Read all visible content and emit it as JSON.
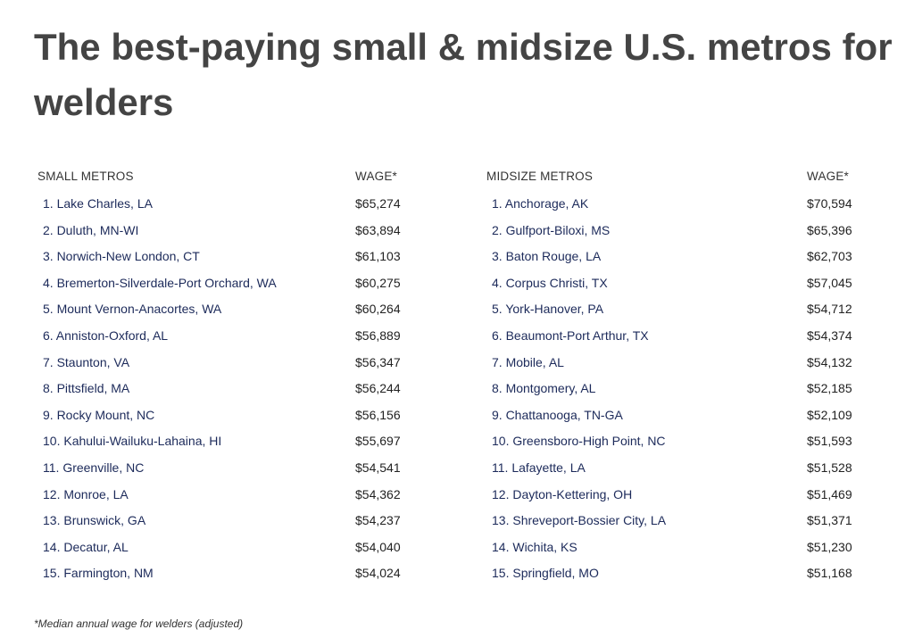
{
  "title": "The best-paying small & midsize U.S. metros for welders",
  "small_metros": {
    "header_name": "SMALL METROS",
    "header_wage": "WAGE*",
    "rows": [
      {
        "name": "1. Lake Charles, LA",
        "wage": "$65,274"
      },
      {
        "name": "2. Duluth, MN-WI",
        "wage": "$63,894"
      },
      {
        "name": "3. Norwich-New London, CT",
        "wage": "$61,103"
      },
      {
        "name": "4. Bremerton-Silverdale-Port Orchard, WA",
        "wage": "$60,275"
      },
      {
        "name": "5. Mount Vernon-Anacortes, WA",
        "wage": "$60,264"
      },
      {
        "name": "6. Anniston-Oxford, AL",
        "wage": "$56,889"
      },
      {
        "name": "7. Staunton, VA",
        "wage": "$56,347"
      },
      {
        "name": "8. Pittsfield, MA",
        "wage": "$56,244"
      },
      {
        "name": "9. Rocky Mount, NC",
        "wage": "$56,156"
      },
      {
        "name": "10. Kahului-Wailuku-Lahaina, HI",
        "wage": "$55,697"
      },
      {
        "name": "11. Greenville, NC",
        "wage": "$54,541"
      },
      {
        "name": "12. Monroe, LA",
        "wage": "$54,362"
      },
      {
        "name": "13. Brunswick, GA",
        "wage": "$54,237"
      },
      {
        "name": "14. Decatur, AL",
        "wage": "$54,040"
      },
      {
        "name": "15. Farmington, NM",
        "wage": "$54,024"
      }
    ]
  },
  "midsize_metros": {
    "header_name": "MIDSIZE METROS",
    "header_wage": "WAGE*",
    "rows": [
      {
        "name": "1. Anchorage, AK",
        "wage": "$70,594"
      },
      {
        "name": "2. Gulfport-Biloxi, MS",
        "wage": "$65,396"
      },
      {
        "name": "3. Baton Rouge, LA",
        "wage": "$62,703"
      },
      {
        "name": "4. Corpus Christi, TX",
        "wage": "$57,045"
      },
      {
        "name": "5. York-Hanover, PA",
        "wage": "$54,712"
      },
      {
        "name": "6. Beaumont-Port Arthur, TX",
        "wage": "$54,374"
      },
      {
        "name": "7. Mobile, AL",
        "wage": "$54,132"
      },
      {
        "name": "8. Montgomery, AL",
        "wage": "$52,185"
      },
      {
        "name": "9. Chattanooga, TN-GA",
        "wage": "$52,109"
      },
      {
        "name": "10. Greensboro-High Point, NC",
        "wage": "$51,593"
      },
      {
        "name": "11. Lafayette, LA",
        "wage": "$51,528"
      },
      {
        "name": "12. Dayton-Kettering, OH",
        "wage": "$51,469"
      },
      {
        "name": "13. Shreveport-Bossier City, LA",
        "wage": "$51,371"
      },
      {
        "name": "14. Wichita, KS",
        "wage": "$51,230"
      },
      {
        "name": "15. Springfield, MO",
        "wage": "$51,168"
      }
    ]
  },
  "footnote": "*Median annual wage for welders (adjusted)"
}
